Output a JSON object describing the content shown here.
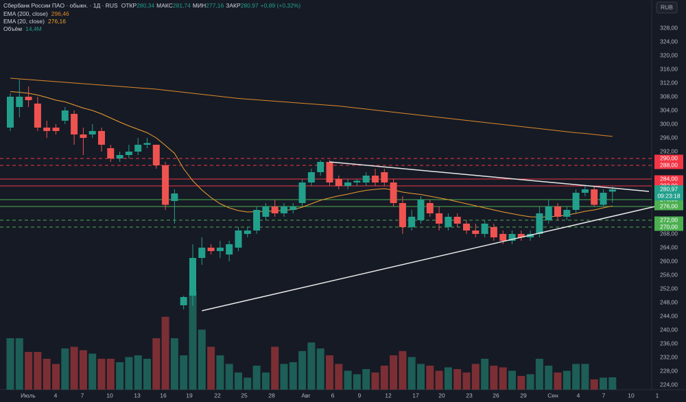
{
  "chart_data": {
    "type": "candlestick",
    "title": "Сбербанк России ПАО · обыкн. · 1Д · RUS",
    "ohlc_legend": [
      {
        "name": "ОТКР",
        "value": {
          "value": 280.34,
          "label": "280,34"
        }
      },
      {
        "name": "МАКС",
        "value": {
          "value": 281.74,
          "label": "281,74"
        }
      },
      {
        "name": "МИН",
        "value": {
          "value": 277.16,
          "label": "277,16"
        }
      },
      {
        "name": "ЗАКР",
        "value": {
          "value": 280.97,
          "label": "280,97"
        }
      }
    ],
    "change": "+0,89 (+0,32%)",
    "currency": "RUB",
    "up_color": "#22a08c",
    "down_color": "#ef5350",
    "up_volume_color": "#1d5e57",
    "down_volume_color": "#7b2f34",
    "open": [
      299,
      305,
      308,
      306,
      299,
      299,
      301,
      303,
      297,
      297,
      298,
      293,
      290,
      291,
      292,
      294,
      294,
      288,
      277.6,
      247.2,
      250,
      261,
      264,
      263,
      262,
      264,
      268,
      269,
      273,
      276,
      274,
      275,
      277,
      283,
      286,
      289,
      284,
      282,
      283,
      283,
      285,
      286,
      283,
      277,
      270,
      272,
      277,
      274,
      270,
      273,
      271,
      269,
      268,
      270,
      268,
      266,
      268,
      267,
      268,
      272,
      276,
      273,
      275,
      280,
      281,
      276.5,
      280.34
    ],
    "high": [
      309,
      313,
      311,
      308,
      301,
      300,
      305,
      304,
      299,
      300,
      299,
      294,
      292,
      294,
      296,
      296,
      294,
      289,
      281,
      250,
      265,
      267,
      265,
      266,
      266,
      270,
      270,
      276,
      277,
      278,
      277,
      277,
      284,
      287,
      289.5,
      289.5,
      285,
      284,
      284,
      286,
      287,
      287,
      284,
      279,
      275,
      279,
      278,
      276,
      274,
      274,
      272,
      271,
      272,
      271,
      269,
      269,
      269,
      269,
      276,
      278,
      277,
      276,
      281,
      282,
      282,
      281,
      281.74
    ],
    "low": [
      298,
      302,
      305,
      298,
      296,
      297,
      300,
      294,
      291,
      296,
      292,
      289,
      289,
      290,
      291,
      293,
      287,
      275,
      271,
      246,
      247,
      259,
      262,
      261,
      260,
      263,
      267,
      268,
      272,
      273,
      273,
      274,
      276,
      282,
      285,
      282,
      281,
      281,
      282,
      282,
      282,
      282,
      276,
      268,
      269,
      271,
      273,
      269,
      269,
      270,
      268,
      267,
      267,
      266,
      265,
      265,
      266,
      266,
      267,
      271,
      272,
      272,
      274,
      279,
      276,
      276,
      277.16
    ],
    "close": [
      308,
      308,
      307,
      299,
      298,
      298,
      304,
      297,
      296,
      298,
      294,
      290,
      291,
      292,
      294,
      294.5,
      288,
      276.5,
      279.8,
      249.6,
      261,
      264,
      263,
      264,
      265,
      269,
      269,
      275,
      276,
      274,
      276,
      276,
      283,
      286,
      289,
      283,
      282,
      283,
      283.5,
      285,
      283,
      283,
      277,
      270,
      273,
      278,
      274,
      271,
      273,
      271,
      269,
      268,
      271,
      267,
      266,
      268,
      267,
      268,
      274,
      276,
      273,
      275,
      280,
      281,
      276.5,
      280,
      280.97
    ],
    "volume": [
      60,
      60,
      44,
      44,
      36,
      30,
      48,
      50,
      46,
      42,
      36,
      36,
      32,
      38,
      40,
      36,
      60,
      85,
      60,
      40,
      115,
      70,
      50,
      40,
      30,
      20,
      14,
      28,
      20,
      50,
      30,
      32,
      45,
      55,
      48,
      40,
      30,
      22,
      18,
      24,
      20,
      28,
      40,
      45,
      38,
      30,
      28,
      22,
      26,
      24,
      20,
      30,
      36,
      28,
      26,
      22,
      16,
      18,
      36,
      28,
      20,
      22,
      30,
      30,
      12,
      14,
      14.4
    ],
    "volume_ylim": [
      0,
      454.4
    ],
    "indicators": [
      {
        "name": "EMA (200, close)",
        "color": "#e08a2a",
        "last": {
          "value": 296.46,
          "label": "296,46"
        },
        "values": [
          313.4,
          313.2,
          313.0,
          312.8,
          312.6,
          312.4,
          312.2,
          312.0,
          311.8,
          311.6,
          311.4,
          311.2,
          311.0,
          310.8,
          310.6,
          310.4,
          310.2,
          309.9,
          309.6,
          309.3,
          309.0,
          308.7,
          308.4,
          308.1,
          307.8,
          307.5,
          307.3,
          307.1,
          306.9,
          306.7,
          306.5,
          306.3,
          306.1,
          305.9,
          305.7,
          305.5,
          305.3,
          305.0,
          304.7,
          304.4,
          304.1,
          303.8,
          303.5,
          303.2,
          302.9,
          302.6,
          302.3,
          302.0,
          301.7,
          301.4,
          301.1,
          300.8,
          300.5,
          300.2,
          299.9,
          299.6,
          299.3,
          299.0,
          298.7,
          298.4,
          298.1,
          297.8,
          297.5,
          297.3,
          297.0,
          296.7,
          296.46
        ]
      },
      {
        "name": "EMA (20, close)",
        "color": "#f0a030",
        "last": {
          "value": 276.16,
          "label": "276,16"
        },
        "values": [
          309.5,
          309.3,
          309.0,
          308.5,
          307.8,
          307.0,
          306.5,
          305.6,
          304.7,
          304.0,
          303.0,
          301.8,
          300.6,
          299.5,
          298.5,
          297.5,
          296.0,
          293.8,
          291.5,
          287.0,
          283.5,
          280.8,
          278.6,
          276.8,
          275.6,
          274.8,
          274.4,
          274.5,
          274.6,
          274.7,
          274.9,
          275.1,
          275.8,
          276.8,
          277.8,
          278.5,
          279.1,
          279.6,
          280.2,
          280.7,
          281.0,
          281.2,
          280.8,
          280.2,
          279.8,
          279.5,
          279.0,
          278.5,
          278.0,
          277.4,
          276.8,
          276.2,
          275.6,
          275.0,
          274.4,
          273.9,
          273.4,
          273.0,
          272.9,
          273.0,
          273.2,
          273.5,
          274.0,
          274.6,
          275.0,
          275.6,
          276.16
        ]
      }
    ],
    "volume_legend": {
      "name": "Объём",
      "last": {
        "value": 14.4,
        "label": "14,4M"
      }
    },
    "levels": [
      {
        "price": {
          "value": 290,
          "label": "290,00"
        },
        "color": "#f23645",
        "style": "dashed"
      },
      {
        "price": {
          "value": 288,
          "label": "288,00"
        },
        "color": "#f23645",
        "style": "dashed"
      },
      {
        "price": {
          "value": 284,
          "label": "284,00"
        },
        "color": "#f23645",
        "style": "solid"
      },
      {
        "price": {
          "value": 282,
          "label": "282,00"
        },
        "color": "#f23645",
        "style": "solid"
      },
      {
        "price": {
          "value": 278,
          "label": "278,00"
        },
        "color": "#4caf50",
        "style": "solid"
      },
      {
        "price": {
          "value": 276,
          "label": "276,00"
        },
        "color": "#4caf50",
        "style": "solid"
      },
      {
        "price": {
          "value": 272,
          "label": "272,00"
        },
        "color": "#4caf50",
        "style": "dashed"
      },
      {
        "price": {
          "value": 270,
          "label": "270,00"
        },
        "color": "#4caf50",
        "style": "dashed"
      }
    ],
    "last_price": {
      "value": 280.97,
      "label": "280,97"
    },
    "countdown": "09:23:18",
    "trendlines": [
      {
        "x": [
          35,
          70
        ],
        "y": [
          289,
          280.4
        ],
        "color": "#e8e8e8"
      },
      {
        "x": [
          21,
          71
        ],
        "y": [
          245.6,
          276.2
        ],
        "color": "#e8e8e8"
      }
    ],
    "categories": [
      "Июль",
      "4",
      "7",
      "10",
      "13",
      "16",
      "19",
      "22",
      "25",
      "28",
      "Авг",
      "6",
      "9",
      "12",
      "17",
      "20",
      "23",
      "26",
      "29",
      "Сен",
      "4",
      "7",
      "10",
      "1"
    ],
    "ylim": [
      222.6,
      336.2
    ],
    "yticks": [
      {
        "value": 328,
        "label": "328,00"
      },
      {
        "value": 324,
        "label": "324,00"
      },
      {
        "value": 320,
        "label": "320,00"
      },
      {
        "value": 316,
        "label": "316,00"
      },
      {
        "value": 312,
        "label": "312,00"
      },
      {
        "value": 308,
        "label": "308,00"
      },
      {
        "value": 304,
        "label": "304,00"
      },
      {
        "value": 300,
        "label": "300,00"
      },
      {
        "value": 296,
        "label": "296,00"
      },
      {
        "value": 292,
        "label": "292,00"
      },
      {
        "value": 268,
        "label": "268,00"
      },
      {
        "value": 264,
        "label": "264,00"
      },
      {
        "value": 260,
        "label": "260,00"
      },
      {
        "value": 256,
        "label": "256,00"
      },
      {
        "value": 252,
        "label": "252,00"
      },
      {
        "value": 248,
        "label": "248,00"
      },
      {
        "value": 244,
        "label": "244,00"
      },
      {
        "value": 240,
        "label": "240,00"
      },
      {
        "value": 236,
        "label": "236,00"
      },
      {
        "value": 232,
        "label": "232,00"
      },
      {
        "value": 228,
        "label": "228,00"
      },
      {
        "value": 224,
        "label": "224,00"
      }
    ]
  }
}
